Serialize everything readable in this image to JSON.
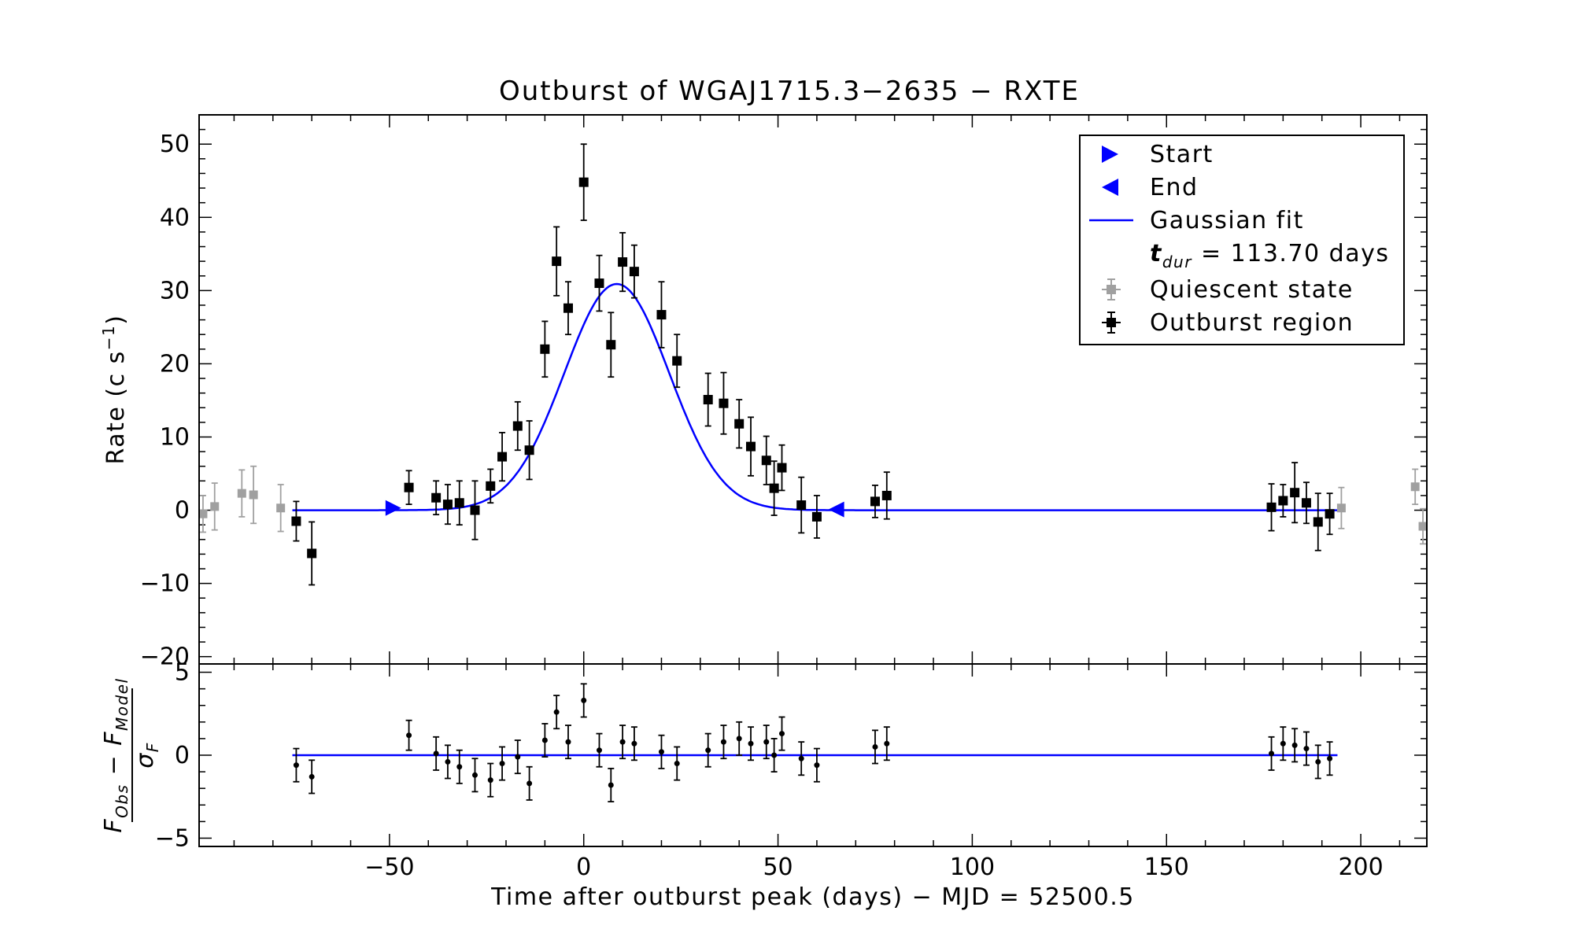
{
  "chart_data": {
    "type": "scatter",
    "title": "Outburst of WGAJ1715.3−2635 − RXTE",
    "xlabel": "Time after outburst peak (days) − MJD = 52500.5",
    "xlim": [
      -99,
      217
    ],
    "x_ticks": [
      -50,
      0,
      50,
      100,
      150,
      200
    ],
    "x_tick_labels": [
      "−50",
      "0",
      "50",
      "100",
      "150",
      "200"
    ],
    "top_panel": {
      "ylabel_main": "Rate (c s",
      "ylabel_sup": "−1",
      "ylabel_close": ")",
      "ylim": [
        -21,
        54
      ],
      "y_ticks": [
        -20,
        -10,
        0,
        10,
        20,
        30,
        40,
        50
      ],
      "y_tick_labels": [
        "−20",
        "−10",
        "0",
        "10",
        "20",
        "30",
        "40",
        "50"
      ],
      "fit": {
        "name": "Gaussian fit",
        "amplitude": 30.9,
        "center": 8.5,
        "sigma": 13.5,
        "x_start": -75,
        "x_end": 194,
        "color": "#0000ff"
      },
      "markers": {
        "start": {
          "x": -49,
          "y": 0.3
        },
        "end": {
          "x": 65,
          "y": 0.1
        }
      },
      "quiescent": {
        "color": "#a0a0a0",
        "x": [
          -98,
          -95,
          -88,
          -85,
          -78,
          195,
          214,
          216
        ],
        "y": [
          -0.5,
          0.5,
          2.3,
          2.1,
          0.3,
          0.3,
          3.2,
          -2.2
        ],
        "err": [
          2.5,
          3.2,
          3.2,
          3.9,
          3.2,
          2.8,
          2.4,
          2.4
        ]
      },
      "outburst": {
        "color": "#000000",
        "x": [
          -74,
          -70,
          -45,
          -38,
          -35,
          -32,
          -28,
          -24,
          -21,
          -17,
          -14,
          -10,
          -7,
          -4,
          0,
          4,
          7,
          10,
          13,
          20,
          24,
          32,
          36,
          40,
          43,
          47,
          49,
          51,
          56,
          60,
          75,
          78,
          177,
          180,
          183,
          186,
          189,
          192
        ],
        "y": [
          -1.5,
          -5.9,
          3.1,
          1.7,
          0.8,
          1.0,
          0.0,
          3.3,
          7.3,
          11.5,
          8.2,
          22.0,
          34.0,
          27.6,
          44.8,
          31.0,
          22.6,
          33.9,
          32.6,
          26.7,
          20.4,
          15.1,
          14.6,
          11.8,
          8.7,
          6.8,
          3.0,
          5.8,
          0.7,
          -0.9,
          1.2,
          2.0,
          0.4,
          1.3,
          2.4,
          1.0,
          -1.6,
          -0.5
        ],
        "err": [
          2.7,
          4.3,
          2.3,
          2.3,
          2.7,
          3.0,
          4.0,
          2.3,
          3.3,
          3.3,
          4.0,
          3.8,
          4.7,
          3.6,
          5.2,
          3.8,
          4.4,
          4.0,
          3.6,
          4.5,
          3.6,
          3.6,
          4.2,
          3.3,
          4.0,
          3.3,
          3.7,
          3.1,
          3.8,
          2.9,
          2.2,
          3.2,
          3.2,
          2.2,
          4.1,
          2.8,
          3.9,
          2.8
        ]
      }
    },
    "bottom_panel": {
      "ylabel_numerator": "F",
      "ylabel_num_sub1": "Obs",
      "ylabel_minus": " − F",
      "ylabel_num_sub2": "Model",
      "ylabel_denominator": "σ",
      "ylabel_den_sub": "F",
      "ylim": [
        -5.5,
        5.5
      ],
      "y_ticks": [
        -5,
        0,
        5
      ],
      "y_tick_labels": [
        "−5",
        "0",
        "5"
      ],
      "residuals": {
        "x": [
          -74,
          -70,
          -45,
          -38,
          -35,
          -32,
          -28,
          -24,
          -21,
          -17,
          -14,
          -10,
          -7,
          -4,
          0,
          4,
          7,
          10,
          13,
          20,
          24,
          32,
          36,
          40,
          43,
          47,
          49,
          51,
          56,
          60,
          75,
          78,
          177,
          180,
          183,
          186,
          189,
          192
        ],
        "y": [
          -0.6,
          -1.3,
          1.2,
          0.1,
          -0.4,
          -0.7,
          -1.2,
          -1.5,
          -0.5,
          -0.1,
          -1.7,
          0.9,
          2.6,
          0.8,
          3.3,
          0.3,
          -1.8,
          0.8,
          0.7,
          0.2,
          -0.5,
          0.3,
          0.8,
          1.0,
          0.7,
          0.8,
          0.0,
          1.3,
          -0.2,
          -0.6,
          0.5,
          0.7,
          0.1,
          0.7,
          0.6,
          0.4,
          -0.4,
          -0.2
        ],
        "err": [
          1.0,
          1.0,
          0.9,
          1.0,
          1.0,
          1.0,
          1.0,
          1.0,
          1.0,
          1.0,
          1.0,
          1.0,
          1.0,
          1.0,
          1.0,
          1.0,
          1.0,
          1.0,
          1.0,
          1.0,
          1.0,
          1.0,
          1.0,
          1.0,
          1.0,
          1.0,
          1.0,
          1.0,
          1.0,
          1.0,
          1.0,
          1.0,
          1.0,
          1.0,
          1.0,
          1.0,
          1.0,
          1.0
        ]
      },
      "zero_line_color": "#0000ff"
    },
    "legend": {
      "placement": "top-right",
      "entries": [
        {
          "label": "Start",
          "marker": "triangle-right",
          "color": "#0000ff"
        },
        {
          "label": "End",
          "marker": "triangle-left",
          "color": "#0000ff"
        },
        {
          "label": "Gaussian fit",
          "marker": "line",
          "color": "#0000ff"
        },
        {
          "label_main": "t",
          "label_sub": "dur",
          "label_rest": " = 113.70 days",
          "marker": "none"
        },
        {
          "label": "Quiescent state",
          "marker": "square-err",
          "color": "#a0a0a0"
        },
        {
          "label": "Outburst region",
          "marker": "square-err",
          "color": "#000000"
        }
      ]
    }
  }
}
